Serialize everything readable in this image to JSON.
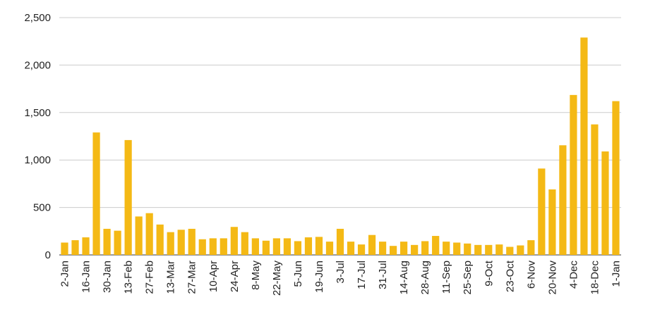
{
  "chart_data": {
    "type": "bar",
    "categories": [
      "2-Jan",
      null,
      "16-Jan",
      null,
      "30-Jan",
      null,
      "13-Feb",
      null,
      "27-Feb",
      null,
      "13-Mar",
      null,
      "27-Mar",
      null,
      "10-Apr",
      null,
      "24-Apr",
      null,
      "8-May",
      null,
      "22-May",
      null,
      "5-Jun",
      null,
      "19-Jun",
      null,
      "3-Jul",
      null,
      "17-Jul",
      null,
      "31-Jul",
      null,
      "14-Aug",
      null,
      "28-Aug",
      null,
      "11-Sep",
      null,
      "25-Sep",
      null,
      "9-Oct",
      null,
      "23-Oct",
      null,
      "6-Nov",
      null,
      "20-Nov",
      null,
      "4-Dec",
      null,
      "18-Dec",
      null,
      "1-Jan"
    ],
    "values": [
      130,
      155,
      185,
      1290,
      275,
      255,
      1210,
      405,
      440,
      320,
      240,
      265,
      275,
      165,
      175,
      175,
      295,
      240,
      175,
      150,
      175,
      175,
      145,
      185,
      190,
      140,
      275,
      140,
      110,
      210,
      140,
      95,
      140,
      105,
      145,
      200,
      140,
      130,
      120,
      105,
      105,
      110,
      85,
      100,
      155,
      910,
      690,
      1155,
      1685,
      2290,
      1375,
      1090,
      1620
    ],
    "color": "#f4b915",
    "ylim": [
      0,
      2500
    ],
    "yticks": [
      0,
      500,
      {
        "value": 1000,
        "label": "1,000"
      },
      {
        "value": 1500,
        "label": "1,500"
      },
      {
        "value": 2000,
        "label": "2,000"
      },
      {
        "value": 2500,
        "label": "2,500"
      }
    ],
    "grid": true
  }
}
